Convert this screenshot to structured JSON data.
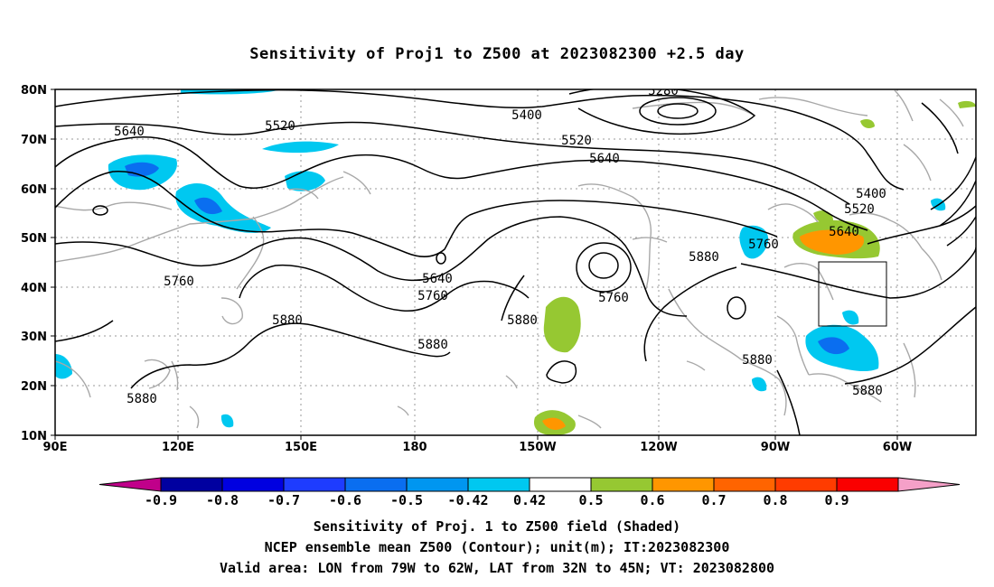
{
  "title": "Sensitivity of Proj1 to Z500 at 2023082300 +2.5 day",
  "lat_labels": [
    "80N",
    "70N",
    "60N",
    "50N",
    "40N",
    "30N",
    "20N",
    "10N"
  ],
  "lon_labels": [
    "90E",
    "120E",
    "150E",
    "180",
    "150W",
    "120W",
    "90W",
    "60W"
  ],
  "contour_labels": [
    "5280",
    "5400",
    "5520",
    "5640",
    "5640",
    "5520",
    "5640",
    "5400",
    "5520",
    "5640",
    "5760",
    "5640",
    "5760",
    "5760",
    "5880",
    "5880",
    "5880",
    "5880",
    "5880",
    "5880",
    "5880",
    "5760",
    "5880"
  ],
  "colorbar": {
    "labels": [
      "-0.9",
      "-0.8",
      "-0.7",
      "-0.6",
      "-0.5",
      "-0.42",
      "0.42",
      "0.5",
      "0.6",
      "0.7",
      "0.8",
      "0.9"
    ],
    "colors": [
      "#c0008a",
      "#0000a0",
      "#0000e0",
      "#1e3cff",
      "#0a6ef0",
      "#0096f0",
      "#00c8f0",
      "#ffffff",
      "#96c832",
      "#ff9600",
      "#ff6400",
      "#ff3c00",
      "#fa0000",
      "#f5a0c8"
    ]
  },
  "captions": [
    "Sensitivity of Proj. 1 to Z500 field (Shaded)",
    "NCEP ensemble mean Z500 (Contour); unit(m); IT:2023082300",
    "Valid area: LON from 79W to 62W, LAT from 32N to 45N; VT: 2023082800"
  ]
}
